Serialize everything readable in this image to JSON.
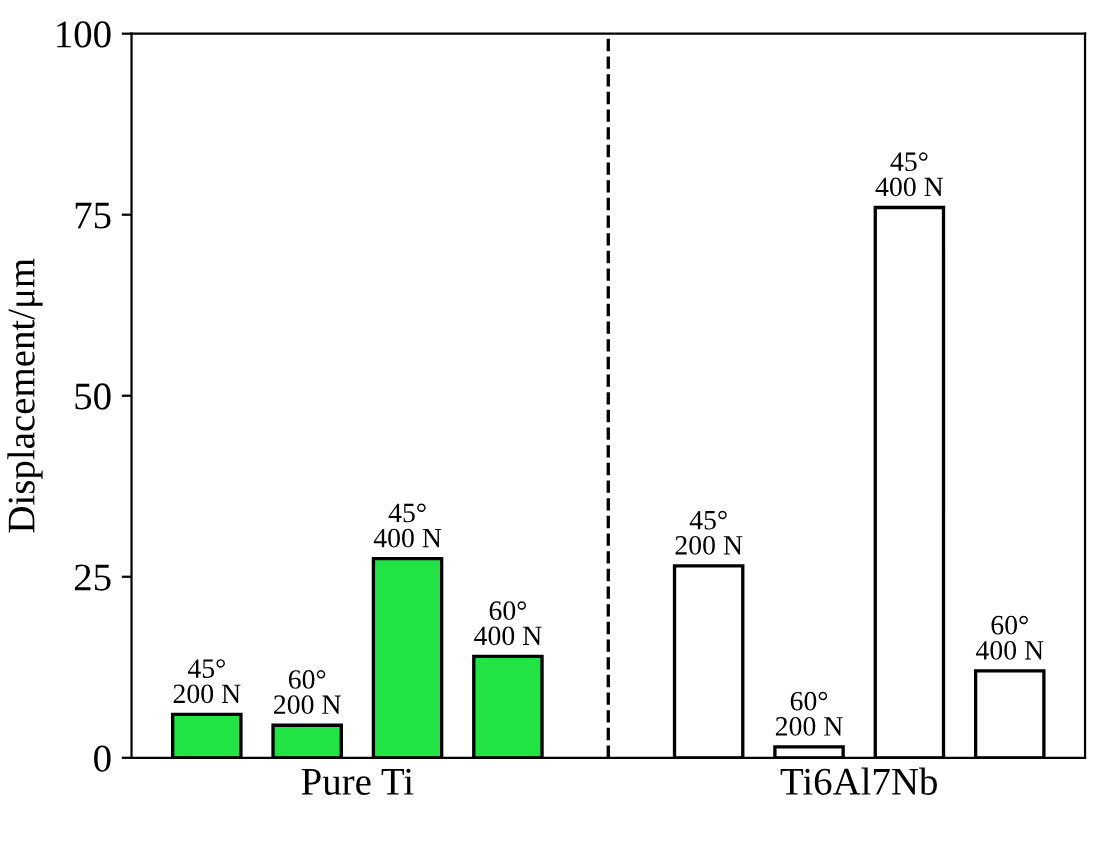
{
  "chart_data": {
    "type": "bar",
    "ylabel": "Displacement/μm",
    "categories": [
      "Pure Ti",
      "Ti6Al7Nb"
    ],
    "series": [
      {
        "name": "45°\n200 N",
        "colors": [
          "#22e344",
          "#ffffff"
        ],
        "values": [
          6,
          26.5
        ]
      },
      {
        "name": "60°\n200 N",
        "colors": [
          "#22e344",
          "#ffffff"
        ],
        "values": [
          4.5,
          1.5
        ]
      },
      {
        "name": "45°\n400 N",
        "colors": [
          "#22e344",
          "#ffffff"
        ],
        "values": [
          27.5,
          76
        ]
      },
      {
        "name": "60°\n400 N",
        "colors": [
          "#22e344",
          "#ffffff"
        ],
        "values": [
          14,
          12
        ]
      }
    ],
    "ylim": [
      0,
      100
    ],
    "yticks": [
      0,
      25,
      50,
      75,
      100
    ],
    "grid": false
  }
}
